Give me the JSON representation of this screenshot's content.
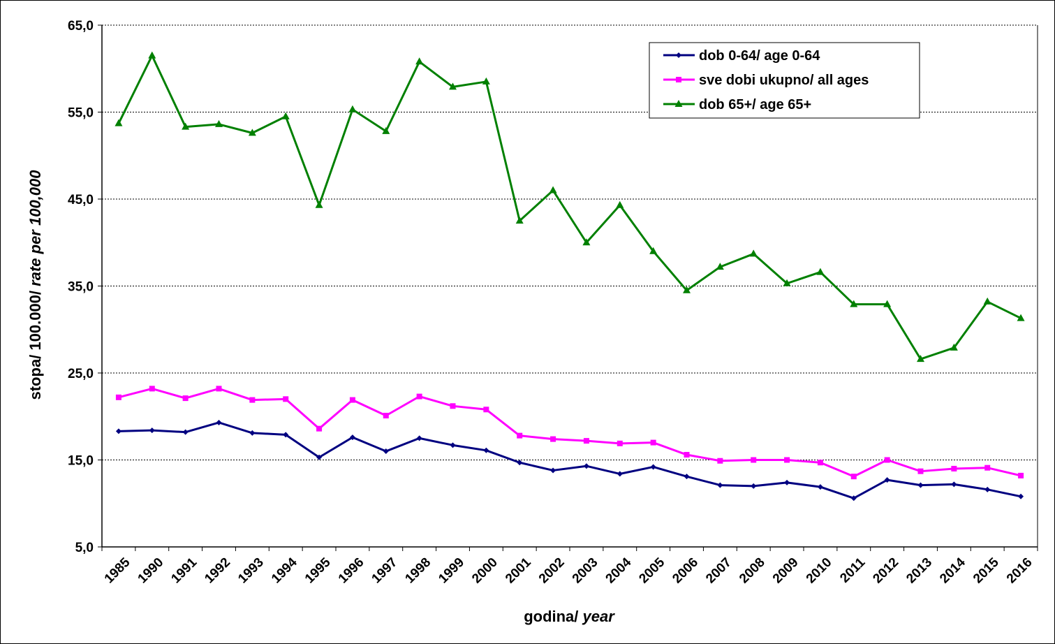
{
  "chart_data": {
    "type": "line",
    "categories": [
      "1985",
      "1990",
      "1991",
      "1992",
      "1993",
      "1994",
      "1995",
      "1996",
      "1997",
      "1998",
      "1999",
      "2000",
      "2001",
      "2002",
      "2003",
      "2004",
      "2005",
      "2006",
      "2007",
      "2008",
      "2009",
      "2010",
      "2011",
      "2012",
      "2013",
      "2014",
      "2015",
      "2016"
    ],
    "series": [
      {
        "name": "dob 0-64/ age 0-64",
        "color": "#000080",
        "marker": "diamond",
        "values": [
          18.3,
          18.4,
          18.2,
          19.3,
          18.1,
          17.9,
          15.3,
          17.6,
          16.0,
          17.5,
          16.7,
          16.1,
          14.7,
          13.8,
          14.3,
          13.4,
          14.2,
          13.1,
          12.1,
          12.0,
          12.4,
          11.9,
          10.6,
          12.7,
          12.1,
          12.2,
          11.6,
          10.8
        ]
      },
      {
        "name": "sve dobi ukupno/ all ages",
        "color": "#FF00FF",
        "marker": "square",
        "values": [
          22.2,
          23.2,
          22.1,
          23.2,
          21.9,
          22.0,
          18.6,
          21.9,
          20.1,
          22.3,
          21.2,
          20.8,
          17.8,
          17.4,
          17.2,
          16.9,
          17.0,
          15.6,
          14.9,
          15.0,
          15.0,
          14.7,
          13.1,
          15.0,
          13.7,
          14.0,
          14.1,
          13.2
        ]
      },
      {
        "name": "dob 65+/ age 65+",
        "color": "#008000",
        "marker": "triangle",
        "values": [
          53.7,
          61.5,
          53.3,
          53.6,
          52.6,
          54.5,
          44.3,
          55.3,
          52.8,
          60.8,
          57.9,
          58.5,
          42.5,
          46.0,
          40.0,
          44.3,
          39.0,
          34.5,
          37.2,
          38.7,
          35.3,
          36.6,
          32.9,
          32.9,
          26.6,
          27.9,
          33.2,
          31.3
        ]
      }
    ],
    "yticks": [
      "5,0",
      "15,0",
      "25,0",
      "35,0",
      "45,0",
      "55,0",
      "65,0"
    ],
    "ylim": [
      5,
      65
    ],
    "xlabel": {
      "prefix": "godina/ ",
      "italic": "year"
    },
    "ylabel": {
      "prefix": "stopa/ 100.000/ ",
      "italic": "rate per 100,000"
    },
    "legend": "top-right",
    "grid": true
  }
}
